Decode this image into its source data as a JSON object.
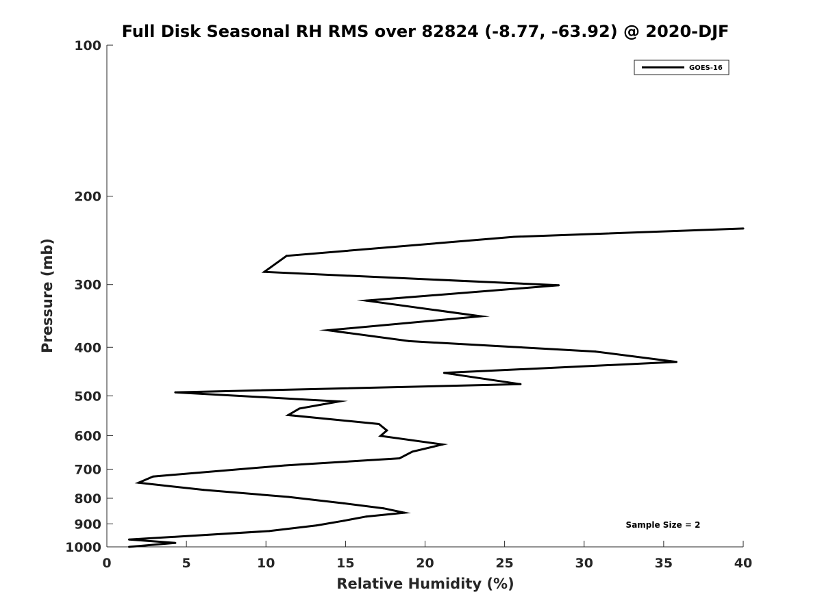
{
  "chart_data": {
    "type": "line",
    "title": "Full Disk Seasonal RH RMS over 82824 (-8.77, -63.92) @ 2020-DJF",
    "xlabel": "Relative Humidity (%)",
    "ylabel": "Pressure (mb)",
    "xlim": [
      0,
      40
    ],
    "ylim": [
      100,
      1000
    ],
    "yscale": "log",
    "ydirection": "reverse",
    "x_ticks": [
      0,
      5,
      10,
      15,
      20,
      25,
      30,
      35,
      40
    ],
    "x_tick_labels": [
      "0",
      "5",
      "10",
      "15",
      "20",
      "25",
      "30",
      "35",
      "40"
    ],
    "y_ticks": [
      100,
      200,
      300,
      400,
      500,
      600,
      700,
      800,
      900,
      1000
    ],
    "y_tick_labels": [
      "100",
      "200",
      "300",
      "400",
      "500",
      "600",
      "700",
      "800",
      "900",
      "1000"
    ],
    "grid": false,
    "legend_position": "top-right",
    "series": [
      {
        "name": "GOES-16",
        "color": "#000000",
        "x": [
          40.0,
          25.6,
          11.3,
          9.9,
          28.4,
          16.3,
          23.5,
          13.9,
          19.0,
          30.7,
          35.8,
          21.2,
          26.0,
          4.3,
          14.6,
          12.1,
          11.4,
          17.1,
          17.6,
          17.2,
          21.1,
          19.2,
          18.4,
          11.2,
          2.9,
          2.0,
          6.1,
          11.4,
          14.9,
          17.4,
          18.7,
          16.3,
          14.9,
          13.2,
          10.2,
          1.4,
          4.3,
          1.4
        ],
        "y": [
          232,
          241,
          263,
          283,
          301,
          323,
          347,
          370,
          389,
          408,
          428,
          450,
          474,
          492,
          513,
          530,
          546,
          569,
          586,
          601,
          625,
          646,
          666,
          688,
          724,
          745,
          770,
          795,
          819,
          838,
          855,
          870,
          887,
          906,
          930,
          967,
          982,
          1000
        ]
      }
    ],
    "annotations": [
      "Sample Size = 2"
    ]
  }
}
